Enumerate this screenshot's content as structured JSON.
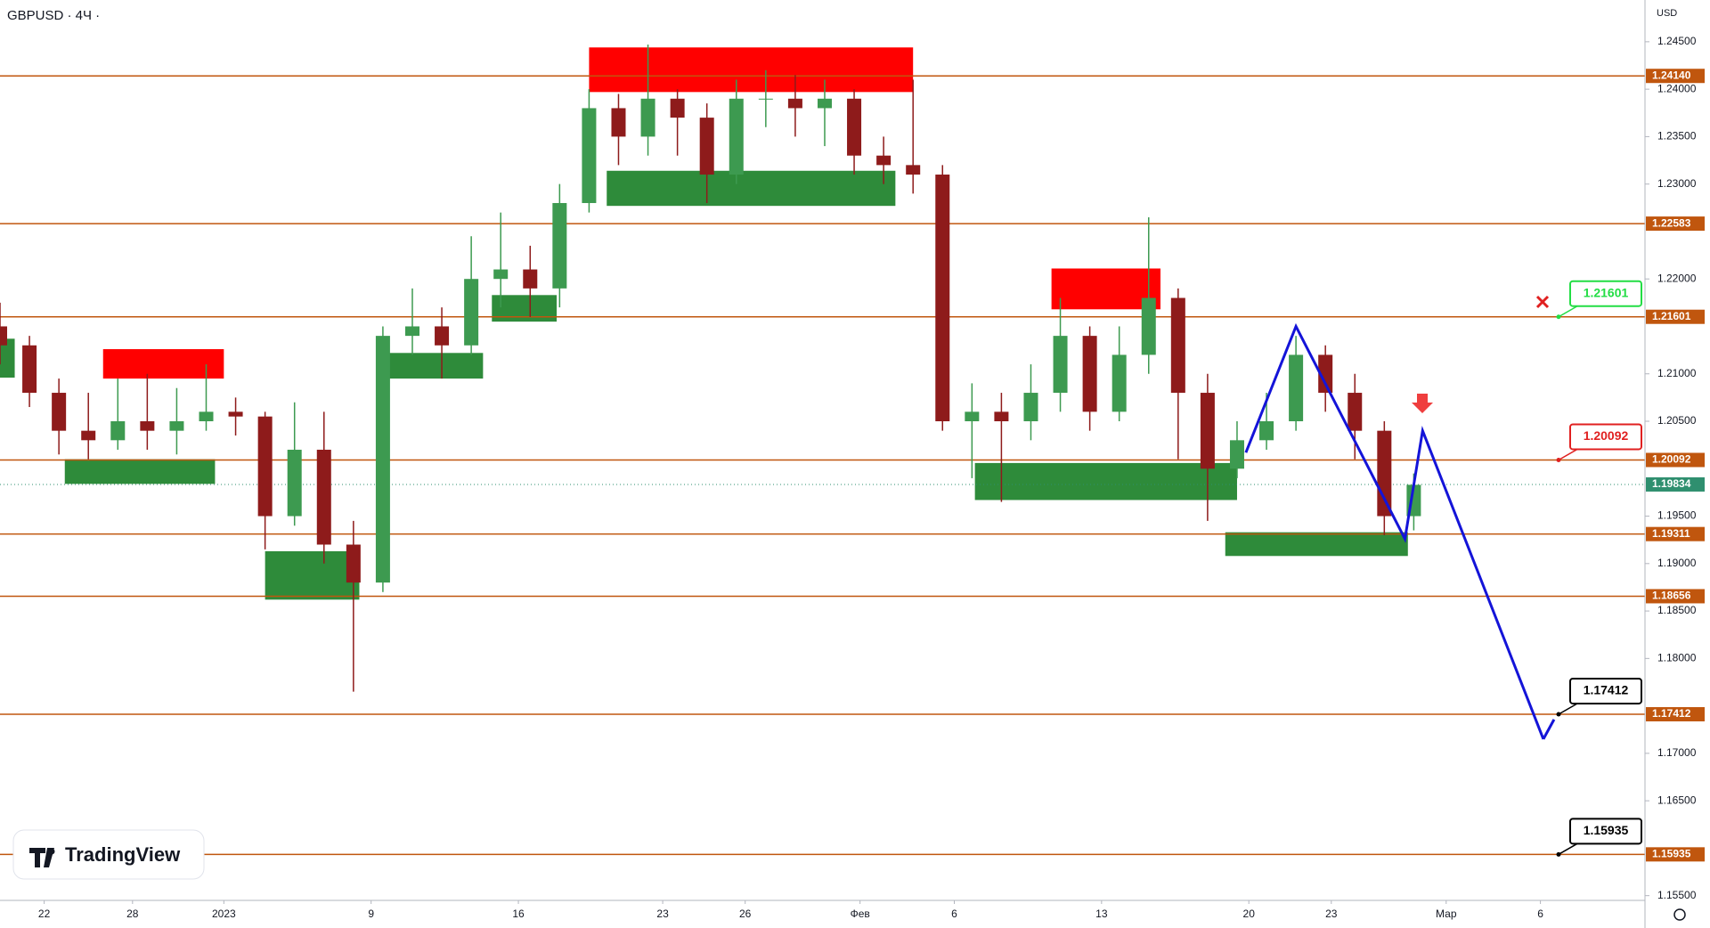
{
  "chart_data": {
    "type": "candlestick",
    "title": "GBPUSD · 4Ч ·",
    "currency": "USD",
    "logo": "TradingView",
    "up_color": "#3d9a50",
    "down_color": "#8e1b1b",
    "x": [
      0,
      1,
      2,
      3,
      4,
      5,
      6,
      7,
      8,
      9,
      10,
      11,
      12,
      13,
      14,
      15,
      16,
      17,
      18,
      19,
      20,
      21,
      22,
      23,
      24,
      25,
      26,
      27,
      28,
      29,
      30,
      31,
      32,
      33,
      34,
      35,
      36,
      37,
      38,
      39,
      40,
      41,
      42,
      43,
      44,
      45,
      46,
      47,
      48
    ],
    "open": [
      1.215,
      1.213,
      1.208,
      1.204,
      1.203,
      1.205,
      1.204,
      1.205,
      1.206,
      1.2055,
      1.195,
      1.202,
      1.192,
      1.188,
      1.214,
      1.215,
      1.213,
      1.22,
      1.221,
      1.219,
      1.228,
      1.238,
      1.235,
      1.239,
      1.237,
      1.231,
      1.239,
      1.239,
      1.238,
      1.239,
      1.233,
      1.232,
      1.231,
      1.205,
      1.206,
      1.205,
      1.208,
      1.214,
      1.206,
      1.212,
      1.218,
      1.208,
      1.2,
      1.203,
      1.205,
      1.212,
      1.208,
      1.204,
      1.195
    ],
    "high": [
      1.2175,
      1.214,
      1.2095,
      1.208,
      1.2095,
      1.21,
      1.2085,
      1.211,
      1.2075,
      1.206,
      1.207,
      1.206,
      1.1945,
      1.215,
      1.219,
      1.217,
      1.2245,
      1.227,
      1.2235,
      1.23,
      1.24,
      1.2395,
      1.2447,
      1.24,
      1.2385,
      1.241,
      1.242,
      1.2415,
      1.241,
      1.24,
      1.235,
      1.241,
      1.232,
      1.209,
      1.208,
      1.211,
      1.218,
      1.215,
      1.215,
      1.2265,
      1.219,
      1.21,
      1.205,
      1.208,
      1.214,
      1.213,
      1.21,
      1.205,
      1.1995
    ],
    "low": [
      1.211,
      1.2065,
      1.2015,
      1.201,
      1.202,
      1.202,
      1.2015,
      1.204,
      1.2035,
      1.1915,
      1.194,
      1.19,
      1.1765,
      1.187,
      1.212,
      1.2095,
      1.212,
      1.217,
      1.216,
      1.217,
      1.227,
      1.232,
      1.233,
      1.233,
      1.228,
      1.23,
      1.236,
      1.235,
      1.234,
      1.231,
      1.23,
      1.229,
      1.204,
      1.199,
      1.1965,
      1.203,
      1.206,
      1.204,
      1.205,
      1.21,
      1.201,
      1.1945,
      1.199,
      1.202,
      1.204,
      1.206,
      1.201,
      1.193,
      1.1935
    ],
    "close": [
      1.213,
      1.208,
      1.204,
      1.203,
      1.205,
      1.204,
      1.205,
      1.206,
      1.2055,
      1.195,
      1.202,
      1.192,
      1.188,
      1.214,
      1.215,
      1.213,
      1.22,
      1.221,
      1.219,
      1.228,
      1.238,
      1.235,
      1.239,
      1.237,
      1.231,
      1.239,
      1.239,
      1.238,
      1.239,
      1.233,
      1.232,
      1.231,
      1.205,
      1.206,
      1.205,
      1.208,
      1.214,
      1.206,
      1.212,
      1.218,
      1.208,
      1.2,
      1.203,
      1.205,
      1.212,
      1.208,
      1.204,
      1.195,
      1.1983
    ],
    "xlim": [
      0,
      55.85
    ],
    "ylim": [
      1.1545,
      1.2494
    ],
    "xticks": [
      {
        "value": 1.5,
        "label": "22"
      },
      {
        "value": 4.5,
        "label": "28"
      },
      {
        "value": 7.6,
        "label": "2023"
      },
      {
        "value": 12.6,
        "label": "9"
      },
      {
        "value": 17.6,
        "label": "16"
      },
      {
        "value": 22.5,
        "label": "23"
      },
      {
        "value": 25.3,
        "label": "26"
      },
      {
        "value": 29.2,
        "label": "Фев"
      },
      {
        "value": 32.4,
        "label": "6"
      },
      {
        "value": 37.4,
        "label": "13"
      },
      {
        "value": 42.4,
        "label": "20"
      },
      {
        "value": 45.2,
        "label": "23"
      },
      {
        "value": 49.1,
        "label": "Мар"
      },
      {
        "value": 52.3,
        "label": "6"
      }
    ],
    "yticks": [
      {
        "value": 1.245,
        "label": "1.24500"
      },
      {
        "value": 1.24,
        "label": "1.24000"
      },
      {
        "value": 1.235,
        "label": "1.23500"
      },
      {
        "value": 1.23,
        "label": "1.23000"
      },
      {
        "value": 1.22,
        "label": "1.22000"
      },
      {
        "value": 1.21,
        "label": "1.21000"
      },
      {
        "value": 1.205,
        "label": "1.20500"
      },
      {
        "value": 1.195,
        "label": "1.19500"
      },
      {
        "value": 1.19,
        "label": "1.19000"
      },
      {
        "value": 1.185,
        "label": "1.18500"
      },
      {
        "value": 1.18,
        "label": "1.18000"
      },
      {
        "value": 1.17,
        "label": "1.17000"
      },
      {
        "value": 1.165,
        "label": "1.16500"
      },
      {
        "value": 1.155,
        "label": "1.15500"
      }
    ],
    "level_color": "#c0560e",
    "levels": [
      {
        "value": 1.2414,
        "label": "1.24140"
      },
      {
        "value": 1.22583,
        "label": "1.22583"
      },
      {
        "value": 1.21601,
        "label": "1.21601"
      },
      {
        "value": 1.20092,
        "label": "1.20092"
      },
      {
        "value": 1.19311,
        "label": "1.19311"
      },
      {
        "value": 1.18656,
        "label": "1.18656"
      },
      {
        "value": 1.17412,
        "label": "1.17412"
      },
      {
        "value": 1.15935,
        "label": "1.15935"
      }
    ],
    "current": {
      "value": 1.19834,
      "label": "1.19834",
      "color": "#2f8f6f"
    },
    "zones": [
      {
        "color": "#ff0000",
        "x": [
          3.5,
          7.6
        ],
        "range": [
          1.2095,
          1.2126
        ]
      },
      {
        "color": "#ff0000",
        "x": [
          20.0,
          31.0
        ],
        "range": [
          1.2397,
          1.2444
        ]
      },
      {
        "color": "#ff0000",
        "x": [
          35.7,
          39.4
        ],
        "range": [
          1.2168,
          1.2211
        ]
      },
      {
        "color": "#2e8b3a",
        "x": [
          0,
          0.5
        ],
        "range": [
          1.2096,
          1.2137
        ]
      },
      {
        "color": "#2e8b3a",
        "x": [
          2.2,
          7.3
        ],
        "range": [
          1.1984,
          1.201
        ]
      },
      {
        "color": "#2e8b3a",
        "x": [
          9.0,
          12.2
        ],
        "range": [
          1.1862,
          1.1913
        ]
      },
      {
        "color": "#2e8b3a",
        "x": [
          13.1,
          16.4
        ],
        "range": [
          1.2095,
          1.2122
        ]
      },
      {
        "color": "#2e8b3a",
        "x": [
          16.7,
          18.9
        ],
        "range": [
          1.2155,
          1.2183
        ]
      },
      {
        "color": "#2e8b3a",
        "x": [
          20.6,
          30.4
        ],
        "range": [
          1.2277,
          1.2314
        ]
      },
      {
        "color": "#2e8b3a",
        "x": [
          33.1,
          42.0
        ],
        "range": [
          1.1967,
          1.2006
        ]
      },
      {
        "color": "#2e8b3a",
        "x": [
          41.6,
          47.8
        ],
        "range": [
          1.1908,
          1.1933
        ]
      }
    ],
    "forecast": {
      "color": "#1414d8",
      "x": [
        42.3,
        44.0,
        47.7,
        48.3,
        52.4
      ],
      "values": [
        1.2017,
        1.215,
        1.1926,
        1.204,
        1.1715
      ]
    },
    "callouts": [
      {
        "value": 1.21601,
        "label": "1.21601",
        "color": "#22dd44"
      },
      {
        "value": 1.20092,
        "label": "1.20092",
        "color": "#e02020"
      },
      {
        "value": 1.17412,
        "label": "1.17412",
        "color": "#000000"
      },
      {
        "value": 1.15935,
        "label": "1.15935",
        "color": "#000000"
      }
    ]
  }
}
